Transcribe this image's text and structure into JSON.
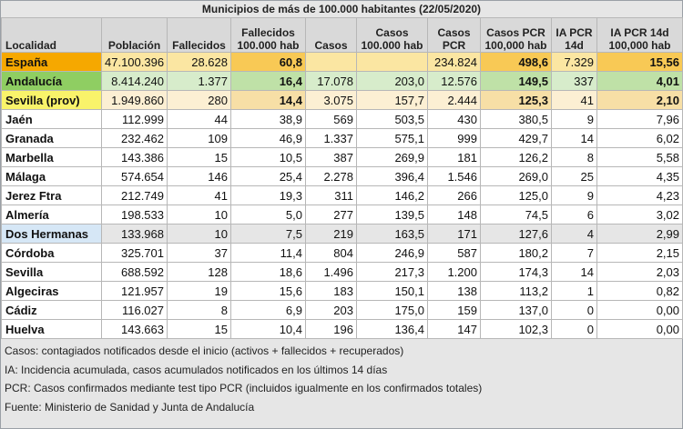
{
  "title": "Municipios de más de 100.000 habitantes (22/05/2020)",
  "columns": [
    "Localidad",
    "Población",
    "Fallecidos",
    "Fallecidos 100.000 hab",
    "Casos",
    "Casos 100.000 hab",
    "Casos PCR",
    "Casos PCR 100,000 hab",
    "IA PCR 14d",
    "IA PCR 14d 100,000 hab"
  ],
  "column_lines": [
    [
      "",
      "Localidad"
    ],
    [
      "",
      "Población"
    ],
    [
      "",
      "Fallecidos"
    ],
    [
      "Fallecidos",
      "100.000 hab"
    ],
    [
      "",
      "Casos"
    ],
    [
      "Casos",
      "100.000 hab"
    ],
    [
      "Casos",
      "PCR"
    ],
    [
      "Casos PCR",
      "100,000 hab"
    ],
    [
      "IA PCR",
      "14d"
    ],
    [
      "IA PCR 14d",
      "100,000 hab"
    ]
  ],
  "rows": [
    [
      "España",
      "47.100.396",
      "28.628",
      "60,8",
      "",
      "",
      "234.824",
      "498,6",
      "7.329",
      "15,56"
    ],
    [
      "Andalucía",
      "8.414.240",
      "1.377",
      "16,4",
      "17.078",
      "203,0",
      "12.576",
      "149,5",
      "337",
      "4,01"
    ],
    [
      "Sevilla (prov)",
      "1.949.860",
      "280",
      "14,4",
      "3.075",
      "157,7",
      "2.444",
      "125,3",
      "41",
      "2,10"
    ],
    [
      "Jaén",
      "112.999",
      "44",
      "38,9",
      "569",
      "503,5",
      "430",
      "380,5",
      "9",
      "7,96"
    ],
    [
      "Granada",
      "232.462",
      "109",
      "46,9",
      "1.337",
      "575,1",
      "999",
      "429,7",
      "14",
      "6,02"
    ],
    [
      "Marbella",
      "143.386",
      "15",
      "10,5",
      "387",
      "269,9",
      "181",
      "126,2",
      "8",
      "5,58"
    ],
    [
      "Málaga",
      "574.654",
      "146",
      "25,4",
      "2.278",
      "396,4",
      "1.546",
      "269,0",
      "25",
      "4,35"
    ],
    [
      "Jerez Ftra",
      "212.749",
      "41",
      "19,3",
      "311",
      "146,2",
      "266",
      "125,0",
      "9",
      "4,23"
    ],
    [
      "Almería",
      "198.533",
      "10",
      "5,0",
      "277",
      "139,5",
      "148",
      "74,5",
      "6",
      "3,02"
    ],
    [
      "Dos Hermanas",
      "133.968",
      "10",
      "7,5",
      "219",
      "163,5",
      "171",
      "127,6",
      "4",
      "2,99"
    ],
    [
      "Córdoba",
      "325.701",
      "37",
      "11,4",
      "804",
      "246,9",
      "587",
      "180,2",
      "7",
      "2,15"
    ],
    [
      "Sevilla",
      "688.592",
      "128",
      "18,6",
      "1.496",
      "217,3",
      "1.200",
      "174,3",
      "14",
      "2,03"
    ],
    [
      "Algeciras",
      "121.957",
      "19",
      "15,6",
      "183",
      "150,1",
      "138",
      "113,2",
      "1",
      "0,82"
    ],
    [
      "Cádiz",
      "116.027",
      "8",
      "6,9",
      "203",
      "175,0",
      "159",
      "137,0",
      "0",
      "0,00"
    ],
    [
      "Huelva",
      "143.663",
      "15",
      "10,4",
      "196",
      "136,4",
      "147",
      "102,3",
      "0",
      "0,00"
    ]
  ],
  "row_classes": [
    "r-espana",
    "r-andalucia",
    "r-sevprov",
    "r-plain",
    "r-plain",
    "r-plain",
    "r-plain",
    "r-plain",
    "r-plain",
    "r-dosh",
    "r-plain",
    "r-plain",
    "r-plain",
    "r-plain",
    "r-plain"
  ],
  "notes": [
    "Casos: contagiados notificados desde el inicio (activos + fallecidos + recuperados)",
    "IA: Incidencia acumulada, casos acumulados notificados en los últimos 14 días",
    "PCR: Casos confirmados mediante test tipo PCR (incluidos igualmente en los confirmados totales)",
    "Fuente: Ministerio de Sanidad y Junta de Andalucía"
  ],
  "colors": {
    "espana": "#f6a800",
    "andalucia": "#8fce62",
    "sevilla_prov": "#f9f36a",
    "dos_hermanas": "#d6e7f6",
    "header_bg": "#d9d9d9"
  }
}
